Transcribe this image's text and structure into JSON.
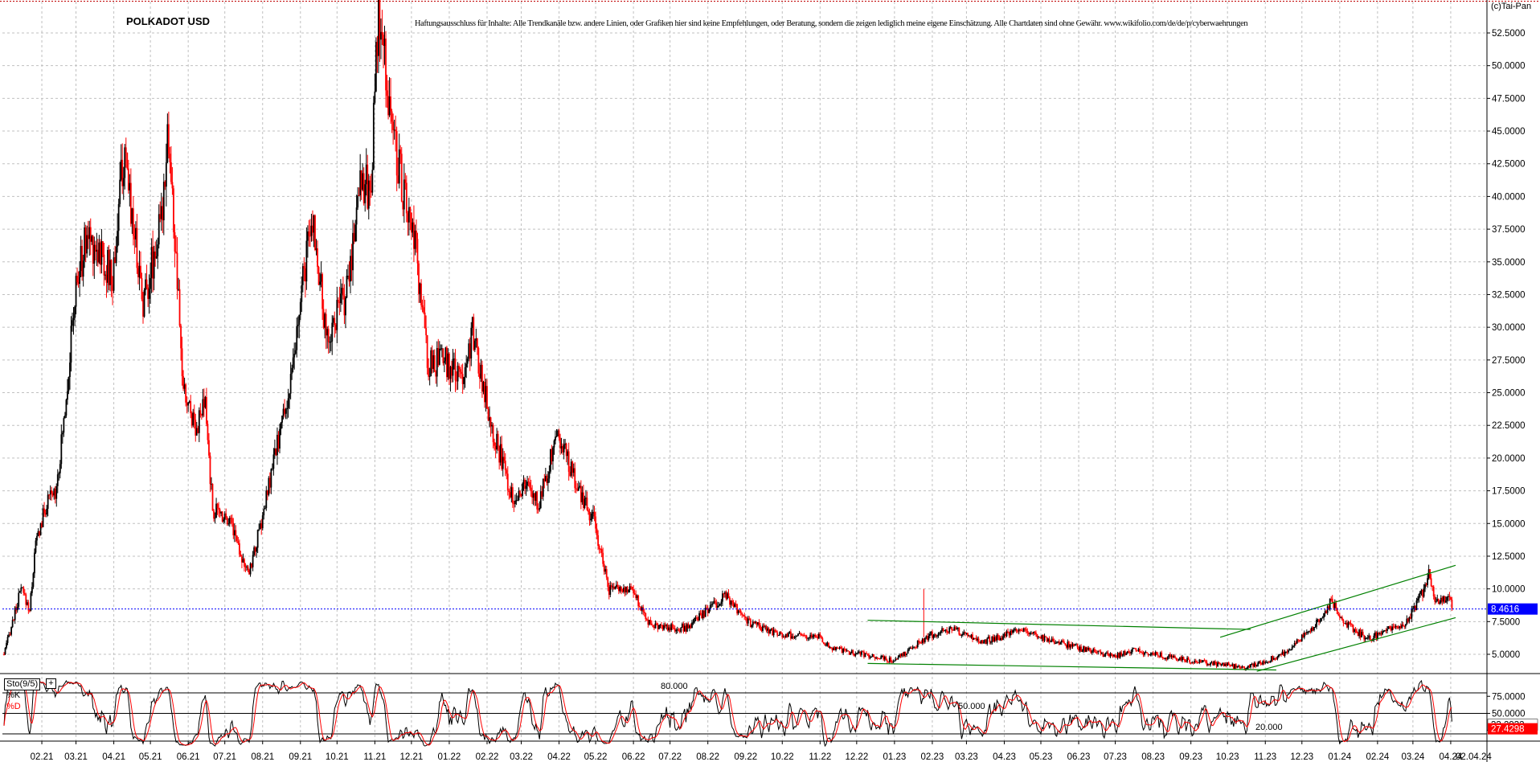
{
  "header": {
    "title": "POLKADOT USD",
    "disclaimer": "Haftungsausschluss für Inhalte: Alle Trendkanäle bzw. andere Linien, oder Grafiken hier sind keine Empfehlungen, oder Beratung, sondern die zeigen lediglich meine eigene Einschätzung. Alle Chartdaten sind ohne Gewähr.  www.wikifolio.com/de/de/p/cyberwaehrungen",
    "copyright": "(c)Tai-Pan"
  },
  "indicator": {
    "name": "Sto(9/5)",
    "k_label": "%K",
    "d_label": "%D",
    "level_80_label": "80.000",
    "level_50_label": "50.000",
    "level_20_label": "20.000",
    "k_value": "33.2932",
    "d_value": "27.4298",
    "k_color": "#000000",
    "d_color": "#ff0000"
  },
  "colors": {
    "up_candle": "#000000",
    "down_candle": "#ff0000",
    "trendline": "#008000",
    "grid": "#c0c0c0",
    "last_price_line": "#0000ff",
    "last_price_badge": "#0000ff",
    "stoch_d_badge": "#ff0000"
  },
  "chart_data": [
    {
      "type": "candlestick",
      "title": "POLKADOT USD",
      "ylim": [
        3.5,
        54
      ],
      "y_ticks": [
        5,
        7.5,
        10,
        12.5,
        15,
        17.5,
        20,
        22.5,
        25,
        27.5,
        30,
        32.5,
        35,
        37.5,
        40,
        42.5,
        45,
        47.5,
        50,
        52.5
      ],
      "y_tick_labels": [
        "5.0000",
        "7.5000",
        "10.0000",
        "12.5000",
        "15.0000",
        "17.5000",
        "20.0000",
        "22.5000",
        "25.0000",
        "27.5000",
        "30.0000",
        "32.5000",
        "35.0000",
        "37.5000",
        "40.0000",
        "42.5000",
        "45.0000",
        "47.5000",
        "50.0000",
        "52.5000"
      ],
      "x_tick_labels": [
        "02.21",
        "03.21",
        "04.21",
        "05.21",
        "06.21",
        "07.21",
        "08.21",
        "09.21",
        "10.21",
        "11.21",
        "12.21",
        "01.22",
        "02.22",
        "03.22",
        "04.22",
        "05.22",
        "06.22",
        "07.22",
        "08.22",
        "09.22",
        "10.22",
        "11.22",
        "12.22",
        "01.23",
        "02.23",
        "03.23",
        "04.23",
        "05.23",
        "06.23",
        "07.23",
        "08.23",
        "09.23",
        "10.23",
        "11.23",
        "12.23",
        "01.24",
        "02.24",
        "03.24",
        "04.24"
      ],
      "x_axis_extra": "02.04.24",
      "last_price": 8.4616,
      "last_price_label": "8.4616",
      "close_path": [
        {
          "date": "2021-01-01",
          "close": 5.0
        },
        {
          "date": "2021-01-15",
          "close": 10.0
        },
        {
          "date": "2021-01-22",
          "close": 8.4
        },
        {
          "date": "2021-01-27",
          "close": 13.5
        },
        {
          "date": "2021-02-05",
          "close": 16.5
        },
        {
          "date": "2021-02-12",
          "close": 17.5
        },
        {
          "date": "2021-02-17",
          "close": 21.0
        },
        {
          "date": "2021-02-22",
          "close": 26.0
        },
        {
          "date": "2021-03-01",
          "close": 33.0
        },
        {
          "date": "2021-03-10",
          "close": 37.0
        },
        {
          "date": "2021-03-20",
          "close": 36.0
        },
        {
          "date": "2021-03-31",
          "close": 33.5
        },
        {
          "date": "2021-04-08",
          "close": 42.5
        },
        {
          "date": "2021-04-13",
          "close": 41.0
        },
        {
          "date": "2021-04-25",
          "close": 32.0
        },
        {
          "date": "2021-05-10",
          "close": 38.0
        },
        {
          "date": "2021-05-15",
          "close": 45.5
        },
        {
          "date": "2021-05-20",
          "close": 38.0
        },
        {
          "date": "2021-05-28",
          "close": 25.0
        },
        {
          "date": "2021-06-08",
          "close": 22.5
        },
        {
          "date": "2021-06-15",
          "close": 24.0
        },
        {
          "date": "2021-06-21",
          "close": 16.0
        },
        {
          "date": "2021-07-05",
          "close": 15.5
        },
        {
          "date": "2021-07-20",
          "close": 11.0
        },
        {
          "date": "2021-07-31",
          "close": 15.0
        },
        {
          "date": "2021-08-15",
          "close": 22.0
        },
        {
          "date": "2021-08-25",
          "close": 26.0
        },
        {
          "date": "2021-09-05",
          "close": 35.0
        },
        {
          "date": "2021-09-12",
          "close": 38.0
        },
        {
          "date": "2021-09-22",
          "close": 29.0
        },
        {
          "date": "2021-10-10",
          "close": 33.0
        },
        {
          "date": "2021-10-20",
          "close": 42.0
        },
        {
          "date": "2021-10-28",
          "close": 40.0
        },
        {
          "date": "2021-11-04",
          "close": 53.5
        },
        {
          "date": "2021-11-08",
          "close": 51.0
        },
        {
          "date": "2021-11-15",
          "close": 45.5
        },
        {
          "date": "2021-11-25",
          "close": 40.0
        },
        {
          "date": "2021-12-04",
          "close": 36.0
        },
        {
          "date": "2021-12-15",
          "close": 27.0
        },
        {
          "date": "2021-12-28",
          "close": 27.5
        },
        {
          "date": "2022-01-10",
          "close": 26.0
        },
        {
          "date": "2022-01-20",
          "close": 29.5
        },
        {
          "date": "2022-02-05",
          "close": 22.5
        },
        {
          "date": "2022-02-22",
          "close": 17.0
        },
        {
          "date": "2022-03-05",
          "close": 18.0
        },
        {
          "date": "2022-03-15",
          "close": 16.5
        },
        {
          "date": "2022-03-31",
          "close": 22.0
        },
        {
          "date": "2022-04-15",
          "close": 18.0
        },
        {
          "date": "2022-04-30",
          "close": 15.0
        },
        {
          "date": "2022-05-12",
          "close": 10.0
        },
        {
          "date": "2022-05-31",
          "close": 10.0
        },
        {
          "date": "2022-06-15",
          "close": 7.2
        },
        {
          "date": "2022-07-15",
          "close": 7.0
        },
        {
          "date": "2022-08-15",
          "close": 9.5
        },
        {
          "date": "2022-09-01",
          "close": 7.5
        },
        {
          "date": "2022-09-30",
          "close": 6.5
        },
        {
          "date": "2022-10-31",
          "close": 6.3
        },
        {
          "date": "2022-11-09",
          "close": 5.5
        },
        {
          "date": "2022-12-31",
          "close": 4.5
        },
        {
          "date": "2023-01-31",
          "close": 6.5
        },
        {
          "date": "2023-02-15",
          "close": 7.0
        },
        {
          "date": "2023-03-15",
          "close": 6.0
        },
        {
          "date": "2023-04-15",
          "close": 6.8
        },
        {
          "date": "2023-05-31",
          "close": 5.5
        },
        {
          "date": "2023-06-30",
          "close": 4.8
        },
        {
          "date": "2023-07-15",
          "close": 5.3
        },
        {
          "date": "2023-08-31",
          "close": 4.5
        },
        {
          "date": "2023-09-30",
          "close": 4.2
        },
        {
          "date": "2023-10-15",
          "close": 3.9
        },
        {
          "date": "2023-11-15",
          "close": 5.0
        },
        {
          "date": "2023-12-10",
          "close": 7.0
        },
        {
          "date": "2023-12-25",
          "close": 9.0
        },
        {
          "date": "2024-01-10",
          "close": 7.0
        },
        {
          "date": "2024-01-25",
          "close": 6.2
        },
        {
          "date": "2024-02-25",
          "close": 7.5
        },
        {
          "date": "2024-03-10",
          "close": 10.0
        },
        {
          "date": "2024-03-14",
          "close": 11.5
        },
        {
          "date": "2024-03-20",
          "close": 9.0
        },
        {
          "date": "2024-03-31",
          "close": 9.5
        },
        {
          "date": "2024-04-02",
          "close": 8.46
        }
      ],
      "trendlines": [
        {
          "from": {
            "date": "2022-12-10",
            "value": 7.6
          },
          "to": {
            "date": "2023-10-20",
            "value": 6.9
          }
        },
        {
          "from": {
            "date": "2022-12-10",
            "value": 4.3
          },
          "to": {
            "date": "2023-11-10",
            "value": 3.8
          }
        },
        {
          "from": {
            "date": "2023-09-25",
            "value": 6.3
          },
          "to": {
            "date": "2024-04-05",
            "value": 11.8
          }
        },
        {
          "from": {
            "date": "2023-10-25",
            "value": 3.7
          },
          "to": {
            "date": "2024-04-05",
            "value": 7.8
          }
        }
      ],
      "annotation_spike": {
        "date": "2023-01-25",
        "value": 10.0
      }
    },
    {
      "type": "line",
      "name": "Sto(9/5)",
      "ylim": [
        0,
        100
      ],
      "levels": [
        20,
        50,
        80
      ],
      "y_tick_labels": [
        "75.0000",
        "50.0000",
        "25.0000"
      ],
      "series": [
        {
          "name": "%K",
          "last": 33.2932
        },
        {
          "name": "%D",
          "last": 27.4298
        }
      ]
    }
  ]
}
